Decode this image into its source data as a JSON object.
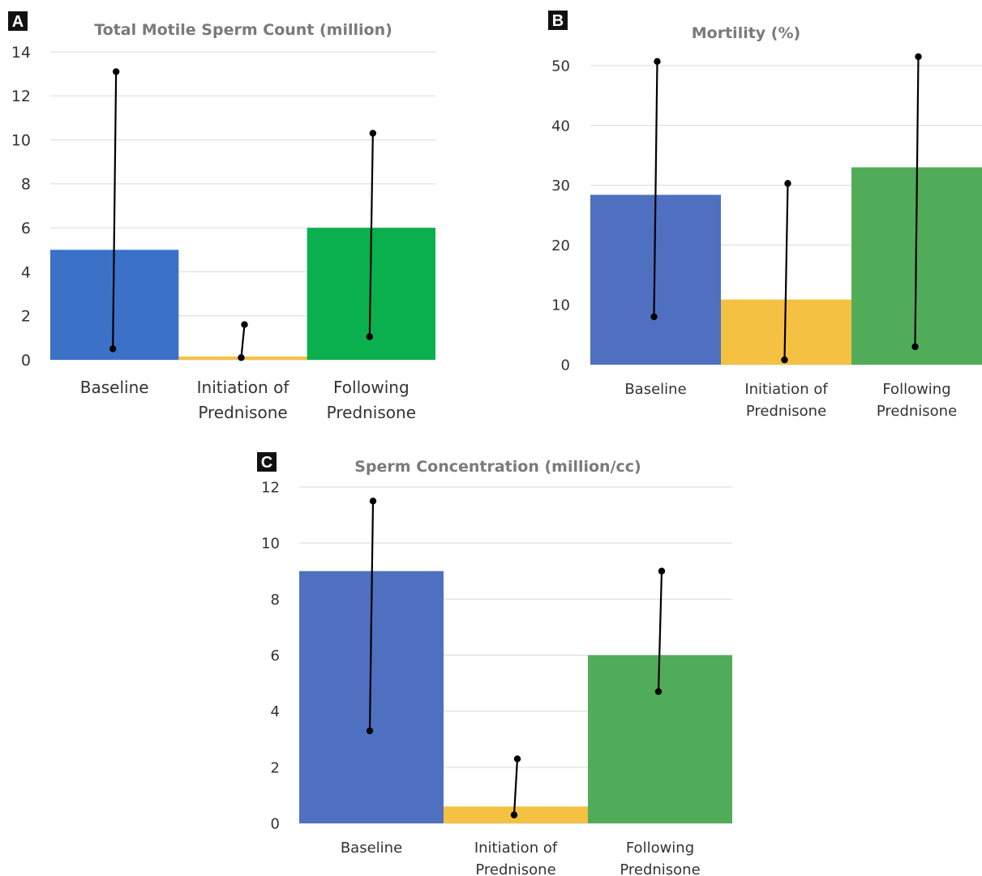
{
  "chart_data": [
    {
      "panel": "A",
      "type": "bar",
      "title": "Total Motile Sperm Count (million)",
      "categories": [
        "Baseline",
        "Initiation of Prednisone",
        "Following Prednisone"
      ],
      "category_lines": [
        [
          "Baseline"
        ],
        [
          "Initiation of",
          "Prednisone"
        ],
        [
          "Following",
          "Prednisone"
        ]
      ],
      "values": [
        5,
        0.15,
        6
      ],
      "error_low": [
        0.5,
        0.1,
        1.05
      ],
      "error_high": [
        13.1,
        1.6,
        10.3
      ],
      "colors": [
        "#3b72c8",
        "#f5c242",
        "#0bb04e"
      ],
      "ylim": [
        0,
        14
      ],
      "yticks": [
        0,
        2,
        4,
        6,
        8,
        10,
        12,
        14
      ],
      "grid": true
    },
    {
      "panel": "B",
      "type": "bar",
      "title": "Mortility (%)",
      "categories": [
        "Baseline",
        "Initiation of Prednisone",
        "Following Prednisone"
      ],
      "category_lines": [
        [
          "Baseline"
        ],
        [
          "Initiation of",
          "Prednisone"
        ],
        [
          "Following",
          "Prednisone"
        ]
      ],
      "values": [
        28.4,
        10.9,
        33
      ],
      "error_low": [
        8,
        0.8,
        3
      ],
      "error_high": [
        50.7,
        30.3,
        51.5
      ],
      "colors": [
        "#4f70c1",
        "#f4c142",
        "#51ac5a"
      ],
      "ylim": [
        0,
        50
      ],
      "yticks": [
        0,
        10,
        20,
        30,
        40,
        50
      ],
      "grid": true
    },
    {
      "panel": "C",
      "type": "bar",
      "title": "Sperm Concentration (million/cc)",
      "categories": [
        "Baseline",
        "Initiation of Prednisone",
        "Following Prednisone"
      ],
      "category_lines": [
        [
          "Baseline"
        ],
        [
          "Initiation of",
          "Prednisone"
        ],
        [
          "Following",
          "Prednisone"
        ]
      ],
      "values": [
        9,
        0.6,
        6
      ],
      "error_low": [
        3.3,
        0.3,
        4.7
      ],
      "error_high": [
        11.5,
        2.3,
        9
      ],
      "colors": [
        "#4f70c1",
        "#f4c142",
        "#51ac5a"
      ],
      "ylim": [
        0,
        12
      ],
      "yticks": [
        0,
        2,
        4,
        6,
        8,
        10,
        12
      ],
      "grid": true
    }
  ]
}
